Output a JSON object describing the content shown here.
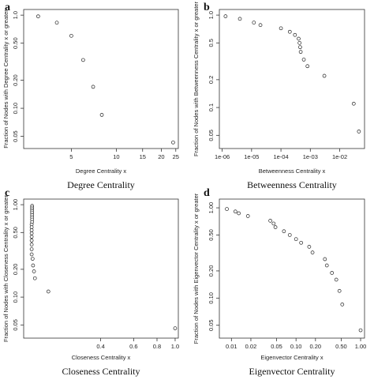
{
  "chart_data": [
    {
      "panel": "a",
      "type": "scatter",
      "caption": "Degree Centrality",
      "xlabel": "Degree Centrality x",
      "ylabel": "Fraction of Nodes with Degree Centrality x or greater",
      "x_scale": "log",
      "y_scale": "log",
      "xlim": [
        2.4,
        26
      ],
      "ylim": [
        0.037,
        1.15
      ],
      "x_ticks": [
        5,
        10,
        15,
        20,
        25
      ],
      "x_tick_labels": [
        "5",
        "10",
        "15",
        "20",
        "25"
      ],
      "y_ticks": [
        1.0,
        0.5,
        0.2,
        0.1,
        0.05
      ],
      "y_tick_labels": [
        "1.0",
        "0.50",
        "0.20",
        "0.10",
        "0.05"
      ],
      "points": [
        {
          "x": 3.0,
          "y": 0.97
        },
        {
          "x": 4.0,
          "y": 0.83
        },
        {
          "x": 5.0,
          "y": 0.6
        },
        {
          "x": 6.0,
          "y": 0.33
        },
        {
          "x": 7.0,
          "y": 0.17
        },
        {
          "x": 8.0,
          "y": 0.085
        },
        {
          "x": 24.0,
          "y": 0.043
        }
      ]
    },
    {
      "panel": "b",
      "type": "scatter",
      "caption": "Betweenness Centrality",
      "xlabel": "Betweenness Centrality x",
      "ylabel": "Fraction of Nodes with Betweenness Centrality x or greater",
      "x_scale": "log",
      "y_scale": "log",
      "xlim": [
        8e-07,
        0.07
      ],
      "ylim": [
        0.036,
        1.15
      ],
      "x_ticks": [
        1e-06,
        1e-05,
        0.0001,
        0.001,
        0.01
      ],
      "x_tick_labels": [
        "1e-06",
        "1e-05",
        "1e-04",
        "1e-03",
        "1e-02"
      ],
      "y_ticks": [
        1.0,
        0.5,
        0.2,
        0.1,
        0.05
      ],
      "y_tick_labels": [
        "1.0",
        "0.5",
        "0.2",
        "0.1",
        "0.05"
      ],
      "points": [
        {
          "x": 1.3e-06,
          "y": 0.97
        },
        {
          "x": 4e-06,
          "y": 0.91
        },
        {
          "x": 1.2e-05,
          "y": 0.83
        },
        {
          "x": 2e-05,
          "y": 0.78
        },
        {
          "x": 0.0001,
          "y": 0.72
        },
        {
          "x": 0.0002,
          "y": 0.66
        },
        {
          "x": 0.0003,
          "y": 0.61
        },
        {
          "x": 0.0004,
          "y": 0.555
        },
        {
          "x": 0.00043,
          "y": 0.5
        },
        {
          "x": 0.00045,
          "y": 0.45
        },
        {
          "x": 0.00047,
          "y": 0.4
        },
        {
          "x": 0.0006,
          "y": 0.33
        },
        {
          "x": 0.0008,
          "y": 0.28
        },
        {
          "x": 0.003,
          "y": 0.22
        },
        {
          "x": 0.03,
          "y": 0.11
        },
        {
          "x": 0.045,
          "y": 0.055
        }
      ]
    },
    {
      "panel": "c",
      "type": "scatter",
      "caption": "Closeness Centrality",
      "xlabel": "Closeness Centrality x",
      "ylabel": "Fraction of Nodes with Closeness Centrality x or greater",
      "x_scale": "log",
      "y_scale": "log",
      "xlim": [
        0.155,
        1.04
      ],
      "ylim": [
        0.036,
        1.15
      ],
      "x_ticks": [
        0.4,
        0.6,
        0.8,
        1.0
      ],
      "x_tick_labels": [
        "0.4",
        "0.6",
        "0.8",
        "1.0"
      ],
      "y_ticks": [
        1.0,
        0.5,
        0.2,
        0.1,
        0.05
      ],
      "y_tick_labels": [
        "1.00",
        "0.50",
        "0.20",
        "0.10",
        "0.05"
      ],
      "points": [
        {
          "x": 0.172,
          "y": 0.97
        },
        {
          "x": 0.172,
          "y": 0.93
        },
        {
          "x": 0.172,
          "y": 0.89
        },
        {
          "x": 0.172,
          "y": 0.85
        },
        {
          "x": 0.172,
          "y": 0.81
        },
        {
          "x": 0.172,
          "y": 0.77
        },
        {
          "x": 0.172,
          "y": 0.73
        },
        {
          "x": 0.172,
          "y": 0.69
        },
        {
          "x": 0.172,
          "y": 0.65
        },
        {
          "x": 0.171,
          "y": 0.61
        },
        {
          "x": 0.171,
          "y": 0.57
        },
        {
          "x": 0.171,
          "y": 0.53
        },
        {
          "x": 0.171,
          "y": 0.49
        },
        {
          "x": 0.171,
          "y": 0.45
        },
        {
          "x": 0.171,
          "y": 0.41
        },
        {
          "x": 0.171,
          "y": 0.37
        },
        {
          "x": 0.171,
          "y": 0.33
        },
        {
          "x": 0.171,
          "y": 0.29
        },
        {
          "x": 0.173,
          "y": 0.26
        },
        {
          "x": 0.174,
          "y": 0.22
        },
        {
          "x": 0.176,
          "y": 0.19
        },
        {
          "x": 0.178,
          "y": 0.16
        },
        {
          "x": 0.21,
          "y": 0.115
        },
        {
          "x": 1.0,
          "y": 0.046
        }
      ]
    },
    {
      "panel": "d",
      "type": "scatter",
      "caption": "Eigenvector Centrality",
      "xlabel": "Eigenvector Centrality x",
      "ylabel": "Fraction of Nodes with Eigenvector Centrality x or greater",
      "x_scale": "log",
      "y_scale": "log",
      "xlim": [
        0.0065,
        1.15
      ],
      "ylim": [
        0.036,
        1.25
      ],
      "x_ticks": [
        0.01,
        0.02,
        0.05,
        0.1,
        0.2,
        0.5,
        1.0
      ],
      "x_tick_labels": [
        "0.01",
        "0.02",
        "0.05",
        "0.10",
        "0.20",
        "0.50",
        "1.00"
      ],
      "y_ticks": [
        1.0,
        0.5,
        0.2,
        0.1,
        0.05
      ],
      "y_tick_labels": [
        "1.00",
        "0.50",
        "0.20",
        "0.10",
        "0.05"
      ],
      "points": [
        {
          "x": 0.0085,
          "y": 0.97
        },
        {
          "x": 0.0115,
          "y": 0.91
        },
        {
          "x": 0.013,
          "y": 0.87
        },
        {
          "x": 0.018,
          "y": 0.81
        },
        {
          "x": 0.04,
          "y": 0.72
        },
        {
          "x": 0.045,
          "y": 0.67
        },
        {
          "x": 0.048,
          "y": 0.61
        },
        {
          "x": 0.065,
          "y": 0.55
        },
        {
          "x": 0.08,
          "y": 0.5
        },
        {
          "x": 0.1,
          "y": 0.45
        },
        {
          "x": 0.12,
          "y": 0.41
        },
        {
          "x": 0.16,
          "y": 0.37
        },
        {
          "x": 0.18,
          "y": 0.32
        },
        {
          "x": 0.28,
          "y": 0.27
        },
        {
          "x": 0.3,
          "y": 0.23
        },
        {
          "x": 0.36,
          "y": 0.19
        },
        {
          "x": 0.42,
          "y": 0.16
        },
        {
          "x": 0.47,
          "y": 0.12
        },
        {
          "x": 0.52,
          "y": 0.085
        },
        {
          "x": 1.0,
          "y": 0.044
        }
      ]
    }
  ]
}
